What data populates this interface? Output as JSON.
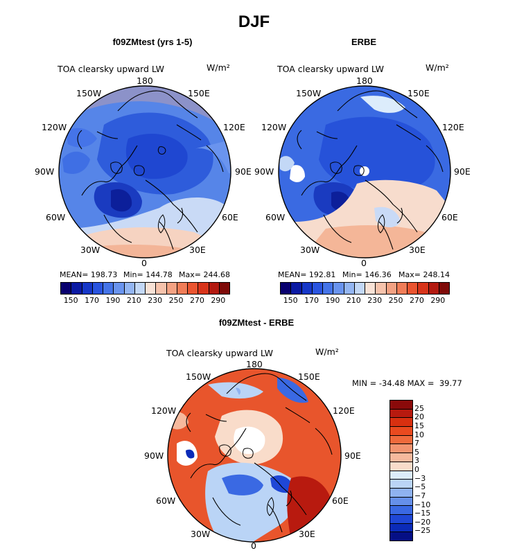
{
  "title": "DJF",
  "panels": [
    {
      "id": "model",
      "title": "f09ZMtest (yrs 1-5)",
      "plot_title": "TOA clearsky upward LW",
      "units": "W/m²",
      "lon_labels": {
        "180": "180",
        "150E": "150E",
        "120E": "120E",
        "90E": "90E",
        "60E": "60E",
        "30E": "30E",
        "0": "0",
        "30W": "30W",
        "60W": "60W",
        "90W": "90W",
        "120W": "120W",
        "150W": "150W"
      },
      "stats": {
        "mean": "MEAN= 198.73",
        "min": "Min= 144.78",
        "max": "Max= 244.68"
      }
    },
    {
      "id": "obs",
      "title": "ERBE",
      "plot_title": "TOA clearsky upward LW",
      "units": "W/m²",
      "lon_labels": {
        "180": "180",
        "150E": "150E",
        "120E": "120E",
        "90E": "90E",
        "60E": "60E",
        "30E": "30E",
        "0": "0",
        "30W": "30W",
        "60W": "60W",
        "90W": "90W",
        "120W": "120W",
        "150W": "150W"
      },
      "stats": {
        "mean": "MEAN= 192.81",
        "min": "Min= 146.36",
        "max": "Max= 248.14"
      }
    },
    {
      "id": "diff",
      "title": "f09ZMtest - ERBE",
      "plot_title": "TOA clearsky upward LW",
      "units": "W/m²",
      "lon_labels": {
        "180": "180",
        "150E": "150E",
        "120E": "120E",
        "90E": "90E",
        "60E": "60E",
        "30E": "30E",
        "0": "0",
        "30W": "30W",
        "60W": "60W",
        "90W": "90W",
        "120W": "120W",
        "150W": "150W"
      },
      "minmax": "MIN = -34.48 MAX =  39.77"
    }
  ],
  "colorbar_top": {
    "colors": [
      "#08006e",
      "#0b1aa3",
      "#1637c8",
      "#2a55e0",
      "#4574e8",
      "#6a94ee",
      "#94b6f2",
      "#c3d8f6",
      "#f8e2d6",
      "#f6c3ac",
      "#f3a283",
      "#f07d58",
      "#ea5530",
      "#d8341a",
      "#b31a10",
      "#7e0a08"
    ],
    "labels": [
      "150",
      "170",
      "190",
      "210",
      "230",
      "250",
      "270",
      "290"
    ]
  },
  "colorbar_diff": {
    "colors_top_to_bottom": [
      "#8a0a0a",
      "#b81a0f",
      "#d93010",
      "#ea4a1f",
      "#f06a3c",
      "#f39470",
      "#f6b99d",
      "#f9dcca",
      "#dcecfb",
      "#bad4f6",
      "#8fb2f0",
      "#6690ea",
      "#3a69e3",
      "#1f47d6",
      "#0b2bb8",
      "#050f85"
    ],
    "labels": [
      "25",
      "20",
      "15",
      "10",
      "7",
      "5",
      "3",
      "0",
      "−3",
      "−5",
      "−7",
      "−10",
      "−15",
      "−20",
      "−25"
    ]
  },
  "colors": {
    "model_bg": "#4a7de6",
    "obs_bg": "#3f72e4",
    "diff_bg": "#e64a24"
  }
}
